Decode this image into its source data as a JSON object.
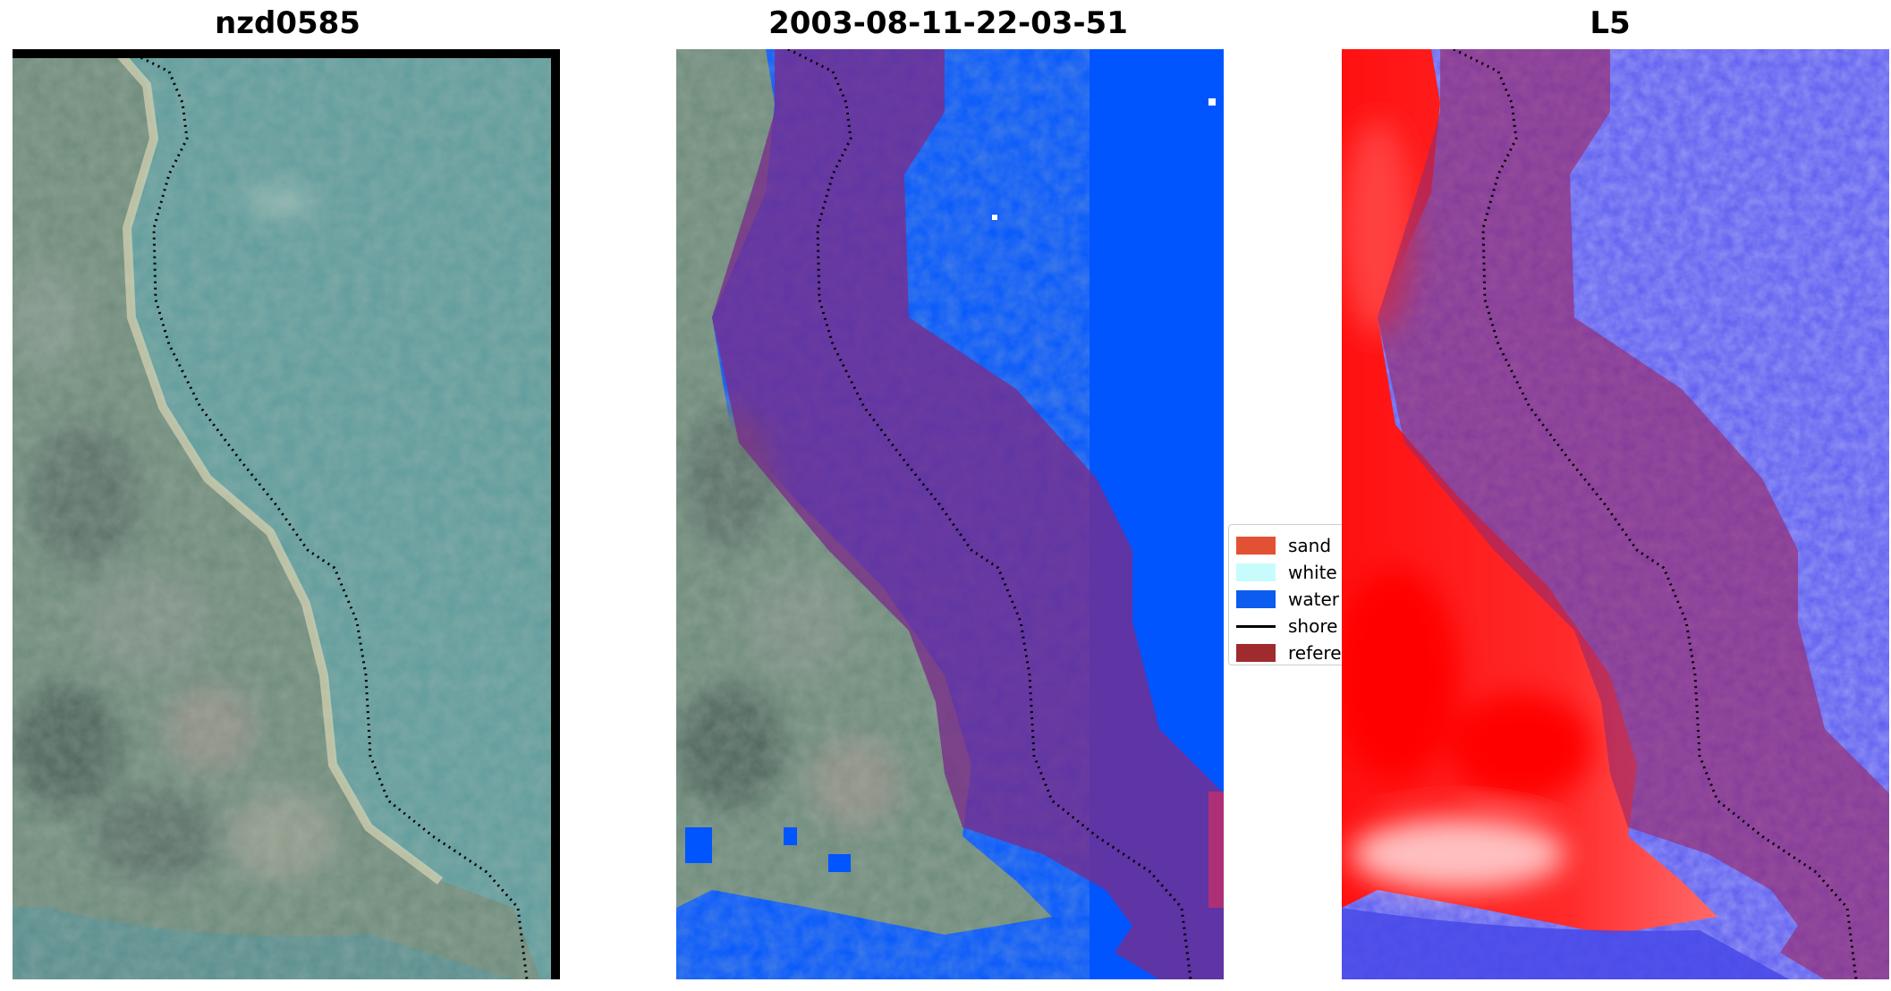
{
  "panels": [
    {
      "title": "nzd0585"
    },
    {
      "title": "2003-08-11-22-03-51"
    },
    {
      "title": "L5"
    }
  ],
  "legend": {
    "items": [
      {
        "label": "sand",
        "kind": "patch",
        "color": "#e25133"
      },
      {
        "label": "white",
        "kind": "patch",
        "color": "#c8fcfc"
      },
      {
        "label": "water",
        "kind": "patch",
        "color": "#0d5cf0"
      },
      {
        "label": "shore",
        "kind": "line",
        "color": "#000000"
      },
      {
        "label": "refere",
        "kind": "patch",
        "color": "#a02b2e"
      }
    ]
  },
  "colors": {
    "land": "#6d8a7a",
    "sea_rgb": "#5e9c9c",
    "water_class": "#0055ff",
    "reference_band": "#8c2e72",
    "index_high": "#ff1010",
    "index_low": "#3030e0"
  }
}
